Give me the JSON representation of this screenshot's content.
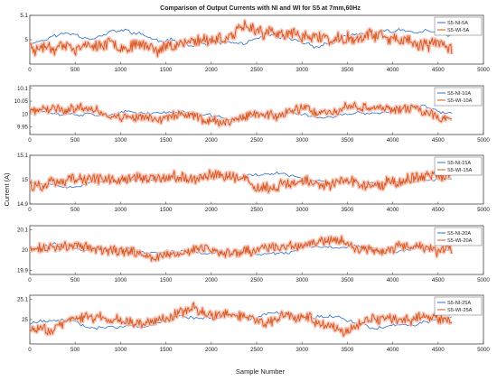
{
  "figure": {
    "title": "Comparison of Output Currents with NI and WI for S5 at 7mm,60Hz",
    "xlabel": "Sample Number",
    "ylabel": "Current (A)",
    "colors": {
      "NI": "#2b6fd0",
      "WI": "#d9541b",
      "WI_band": "#f6c2b4",
      "axis": "#444444",
      "grid": "#e6e6e6"
    }
  },
  "chart_data": [
    {
      "type": "line",
      "xlim": [
        0,
        5000
      ],
      "ylim": [
        4.9,
        5.1
      ],
      "xticks": [
        0,
        500,
        1000,
        1500,
        2000,
        2500,
        3000,
        3500,
        4000,
        4500,
        5000
      ],
      "yticks": [
        5,
        5.1
      ],
      "legend_position": "top-right",
      "series": [
        {
          "name": "S5-NI-5A",
          "color": "#2b6fd0",
          "x_range": [
            0,
            4650
          ],
          "points": 240,
          "seed": 11,
          "center": 5.0,
          "amplitude": 0.05,
          "noise": 0.005
        },
        {
          "name": "S5-WI-5A",
          "color": "#d9541b",
          "x_range": [
            0,
            4650
          ],
          "points": 480,
          "seed": 23,
          "center": 5.0,
          "amplitude": 0.055,
          "noise": 0.02
        }
      ]
    },
    {
      "type": "line",
      "xlim": [
        0,
        5000
      ],
      "ylim": [
        9.92,
        10.11
      ],
      "xticks": [
        0,
        500,
        1000,
        1500,
        2000,
        2500,
        3000,
        3500,
        4000,
        4500,
        5000
      ],
      "yticks": [
        9.95,
        10,
        10.05,
        10.1
      ],
      "legend_position": "top-right",
      "series": [
        {
          "name": "S5-NI-10A",
          "color": "#2b6fd0",
          "x_range": [
            0,
            4650
          ],
          "points": 240,
          "seed": 37,
          "center": 10.0,
          "amplitude": 0.03,
          "noise": 0.004
        },
        {
          "name": "S5-WI-10A",
          "color": "#d9541b",
          "x_range": [
            0,
            4650
          ],
          "points": 480,
          "seed": 41,
          "center": 10.0,
          "amplitude": 0.04,
          "noise": 0.015
        }
      ]
    },
    {
      "type": "line",
      "xlim": [
        0,
        5000
      ],
      "ylim": [
        14.9,
        15.1
      ],
      "xticks": [
        0,
        500,
        1000,
        1500,
        2000,
        2500,
        3000,
        3500,
        4000,
        4500,
        5000
      ],
      "yticks": [
        14.9,
        15,
        15.1
      ],
      "legend_position": "top-right",
      "series": [
        {
          "name": "S5-NI-15A",
          "color": "#2b6fd0",
          "x_range": [
            0,
            4650
          ],
          "points": 240,
          "seed": 53,
          "center": 15.0,
          "amplitude": 0.025,
          "noise": 0.004
        },
        {
          "name": "S5-WI-15A",
          "color": "#d9541b",
          "x_range": [
            0,
            4650
          ],
          "points": 480,
          "seed": 59,
          "center": 15.0,
          "amplitude": 0.035,
          "noise": 0.02
        }
      ]
    },
    {
      "type": "line",
      "xlim": [
        0,
        5000
      ],
      "ylim": [
        19.88,
        20.12
      ],
      "xticks": [
        0,
        500,
        1000,
        1500,
        2000,
        2500,
        3000,
        3500,
        4000,
        4500,
        5000
      ],
      "yticks": [
        19.9,
        20,
        20.1
      ],
      "legend_position": "top-right",
      "series": [
        {
          "name": "S5-NI-20A",
          "color": "#2b6fd0",
          "x_range": [
            0,
            4650
          ],
          "points": 240,
          "seed": 67,
          "center": 20.0,
          "amplitude": 0.04,
          "noise": 0.005
        },
        {
          "name": "S5-WI-20A",
          "color": "#d9541b",
          "x_range": [
            0,
            4650
          ],
          "points": 480,
          "seed": 71,
          "center": 20.0,
          "amplitude": 0.05,
          "noise": 0.02
        }
      ]
    },
    {
      "type": "line",
      "xlim": [
        0,
        5000
      ],
      "ylim": [
        24.88,
        25.12
      ],
      "xticks": [
        0,
        500,
        1000,
        1500,
        2000,
        2500,
        3000,
        3500,
        4000,
        4500,
        5000
      ],
      "yticks": [
        25,
        25.1
      ],
      "legend_position": "top-right",
      "series": [
        {
          "name": "S5-NI-25A",
          "color": "#2b6fd0",
          "x_range": [
            0,
            4650
          ],
          "points": 240,
          "seed": 79,
          "center": 25.0,
          "amplitude": 0.05,
          "noise": 0.005
        },
        {
          "name": "S5-WI-25A",
          "color": "#d9541b",
          "x_range": [
            0,
            4650
          ],
          "points": 480,
          "seed": 83,
          "center": 25.0,
          "amplitude": 0.06,
          "noise": 0.02
        }
      ]
    }
  ]
}
